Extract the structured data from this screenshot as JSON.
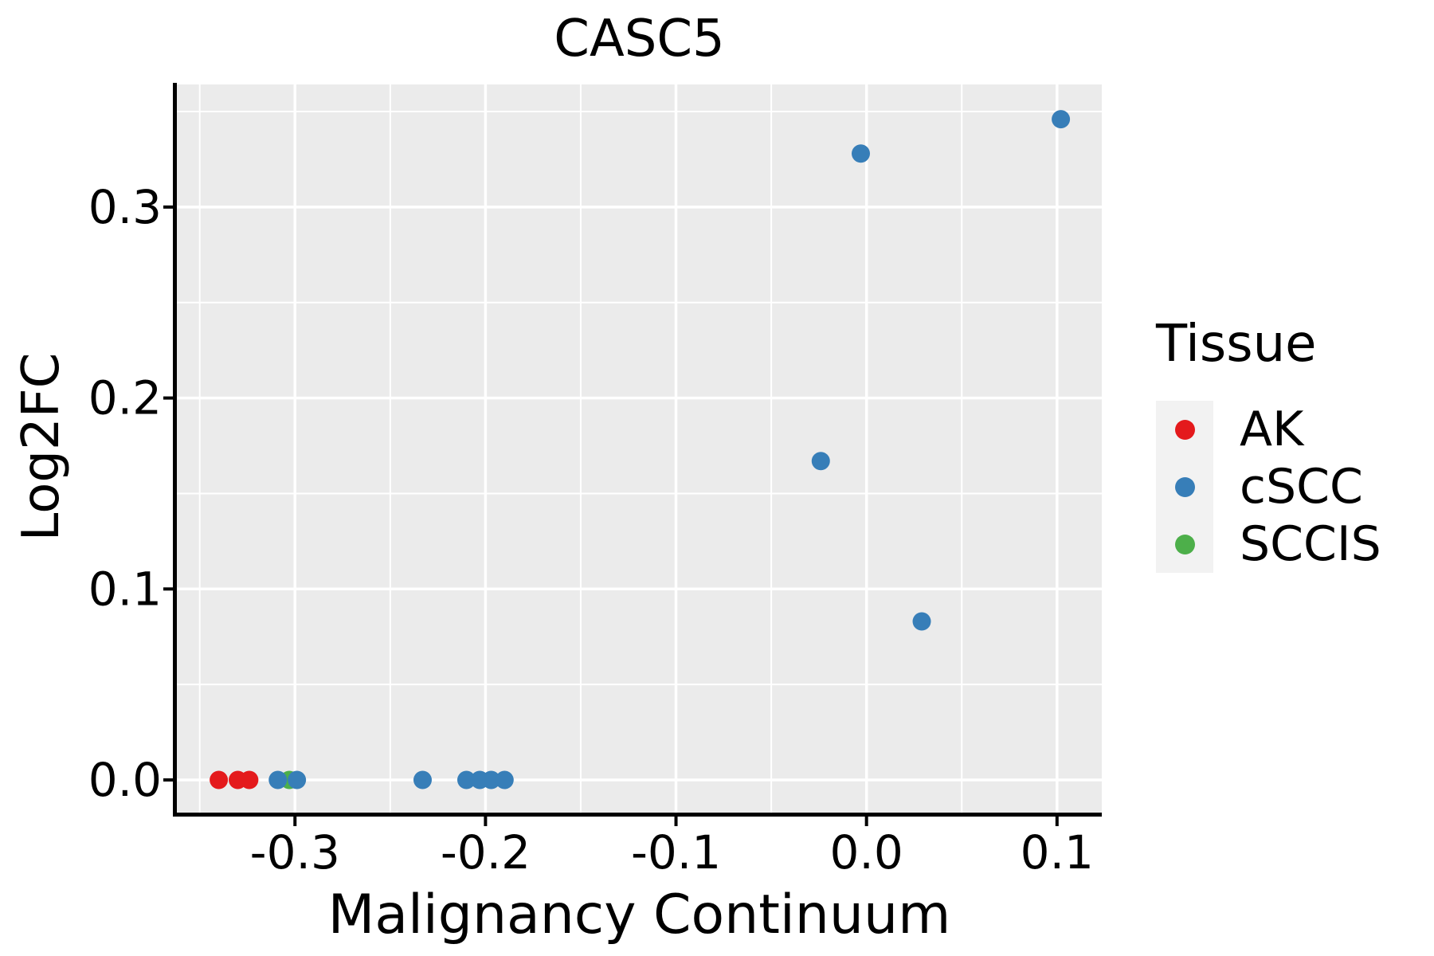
{
  "title": "CASC5",
  "chart_data": {
    "type": "scatter",
    "title": "CASC5",
    "xlabel": "Malignancy Continuum",
    "ylabel": "Log2FC",
    "xlim": [
      -0.362,
      0.1235
    ],
    "ylim": [
      -0.0171,
      0.3642
    ],
    "x_major_ticks": [
      -0.3,
      -0.2,
      -0.1,
      0.0,
      0.1
    ],
    "x_tick_labels": [
      "-0.3",
      "-0.2",
      "-0.1",
      "0.0",
      "0.1"
    ],
    "x_minor_ticks": [
      -0.35,
      -0.25,
      -0.15,
      -0.05,
      0.05
    ],
    "y_major_ticks": [
      0.0,
      0.1,
      0.2,
      0.3
    ],
    "y_tick_labels": [
      "0.0",
      "0.1",
      "0.2",
      "0.3"
    ],
    "y_minor_ticks": [
      0.05,
      0.15,
      0.25,
      0.35
    ],
    "grid": "major+minor",
    "legend": {
      "title": "Tissue",
      "position": "right",
      "entries": [
        {
          "label": "AK",
          "color": "#E41A1C"
        },
        {
          "label": "cSCC",
          "color": "#377EB8"
        },
        {
          "label": "SCCIS",
          "color": "#4DAF4A"
        }
      ]
    },
    "series": [
      {
        "name": "AK",
        "color": "#E41A1C",
        "points": [
          [
            -0.34,
            0.0
          ],
          [
            -0.33,
            0.0
          ],
          [
            -0.324,
            0.0
          ]
        ]
      },
      {
        "name": "SCCIS",
        "color": "#4DAF4A",
        "points": [
          [
            -0.303,
            0.0
          ]
        ]
      },
      {
        "name": "cSCC",
        "color": "#377EB8",
        "points": [
          [
            -0.309,
            0.0
          ],
          [
            -0.299,
            0.0
          ],
          [
            -0.233,
            0.0
          ],
          [
            -0.21,
            0.0
          ],
          [
            -0.203,
            0.0
          ],
          [
            -0.197,
            0.0
          ],
          [
            -0.19,
            0.0
          ],
          [
            -0.024,
            0.167
          ],
          [
            -0.003,
            0.328
          ],
          [
            0.029,
            0.083
          ],
          [
            0.102,
            0.346
          ]
        ]
      }
    ]
  },
  "style": {
    "panel_bg": "#EBEBEB",
    "grid_color": "#FFFFFF",
    "axis_color": "#000000",
    "tick_label_color": "#000000",
    "legend_key_bg": "#F2F2F2",
    "point_radius": 11.5
  }
}
